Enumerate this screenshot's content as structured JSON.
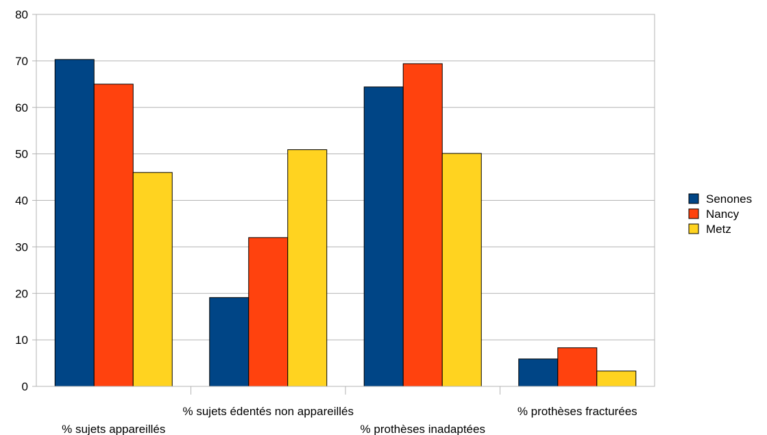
{
  "chart_data": {
    "type": "bar",
    "categories": [
      "% sujets appareillés",
      "% sujets édentés non appareillés",
      "% prothèses inadaptées",
      "% prothèses fracturées"
    ],
    "series": [
      {
        "name": "Senones",
        "color": "#004586",
        "values": [
          70.3,
          19.1,
          64.4,
          5.9
        ]
      },
      {
        "name": "Nancy",
        "color": "#ff420e",
        "values": [
          65.0,
          32.0,
          69.4,
          8.3
        ]
      },
      {
        "name": "Metz",
        "color": "#ffd320",
        "values": [
          46.0,
          50.9,
          50.1,
          3.3
        ]
      }
    ],
    "ylim": [
      0,
      80
    ],
    "yticks": [
      0,
      10,
      20,
      30,
      40,
      50,
      60,
      70,
      80
    ],
    "grid": true,
    "legend": "right"
  }
}
